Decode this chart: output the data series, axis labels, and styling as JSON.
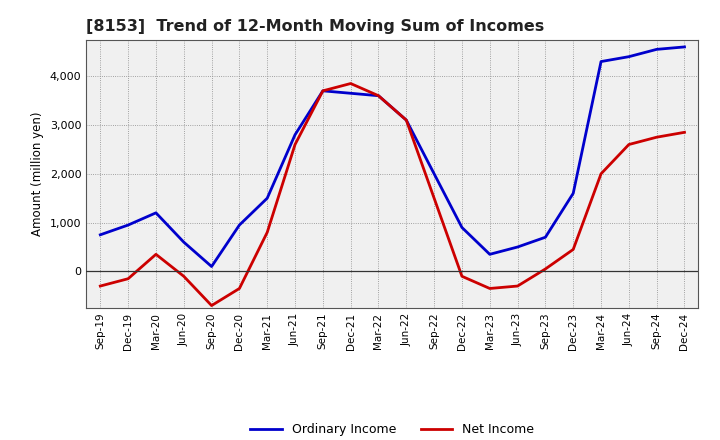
{
  "title": "[8153]  Trend of 12-Month Moving Sum of Incomes",
  "ylabel": "Amount (million yen)",
  "labels": [
    "Sep-19",
    "Dec-19",
    "Mar-20",
    "Jun-20",
    "Sep-20",
    "Dec-20",
    "Mar-21",
    "Jun-21",
    "Sep-21",
    "Dec-21",
    "Mar-22",
    "Jun-22",
    "Sep-22",
    "Dec-22",
    "Mar-23",
    "Jun-23",
    "Sep-23",
    "Dec-23",
    "Mar-24",
    "Jun-24",
    "Sep-24",
    "Dec-24"
  ],
  "ordinary_income": [
    750,
    950,
    1200,
    600,
    100,
    950,
    1500,
    2800,
    3700,
    3650,
    3600,
    3100,
    2000,
    900,
    350,
    500,
    700,
    1600,
    4300,
    4400,
    4550,
    4600
  ],
  "net_income": [
    -300,
    -150,
    350,
    -100,
    -700,
    -350,
    800,
    2600,
    3700,
    3850,
    3600,
    3100,
    1500,
    -100,
    -350,
    -300,
    50,
    450,
    2000,
    2600,
    2750,
    2850
  ],
  "ordinary_color": "#0000cc",
  "net_color": "#cc0000",
  "ylim": [
    -750,
    4750
  ],
  "yticks": [
    0,
    1000,
    2000,
    3000,
    4000
  ],
  "background_color": "#ffffff",
  "plot_bg_color": "#f0f0f0",
  "grid_color": "#888888"
}
